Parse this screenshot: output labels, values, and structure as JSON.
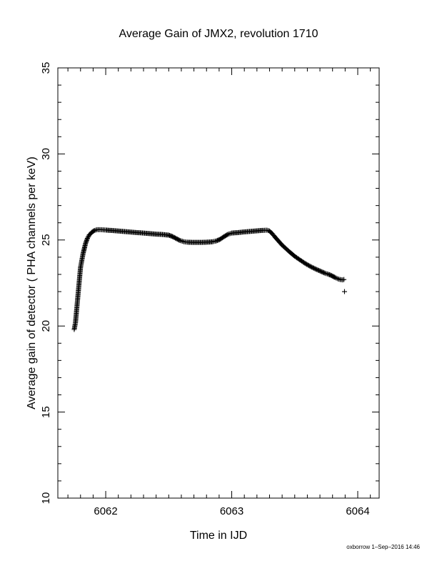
{
  "chart_data": {
    "type": "scatter",
    "title": "Average Gain of JMX2, revolution 1710",
    "xlabel": "Time in IJD",
    "ylabel": "Average gain of detector ( PHA channels per keV)",
    "xlim": [
      6061.62,
      6064.17
    ],
    "ylim": [
      10,
      35
    ],
    "x_ticks": [
      6062,
      6063,
      6064
    ],
    "y_ticks": [
      10,
      15,
      20,
      25,
      30,
      35
    ],
    "x_minor_step": 0.1,
    "y_minor_step": 1,
    "grid": false,
    "marker": "+",
    "series": [
      {
        "points": [
          [
            6061.75,
            19.8
          ],
          [
            6061.76,
            20.2
          ],
          [
            6061.765,
            20.6
          ],
          [
            6061.77,
            21.0
          ],
          [
            6061.775,
            21.4
          ],
          [
            6061.78,
            21.8
          ],
          [
            6061.785,
            22.2
          ],
          [
            6061.79,
            22.6
          ],
          [
            6061.795,
            23.0
          ],
          [
            6061.8,
            23.4
          ],
          [
            6061.81,
            23.8
          ],
          [
            6061.82,
            24.2
          ],
          [
            6061.83,
            24.5
          ],
          [
            6061.84,
            24.8
          ],
          [
            6061.855,
            25.1
          ],
          [
            6061.87,
            25.3
          ],
          [
            6061.89,
            25.45
          ],
          [
            6061.91,
            25.55
          ],
          [
            6061.93,
            25.6
          ],
          [
            6061.96,
            25.6
          ],
          [
            6062.0,
            25.58
          ],
          [
            6062.05,
            25.55
          ],
          [
            6062.1,
            25.52
          ],
          [
            6062.15,
            25.49
          ],
          [
            6062.2,
            25.46
          ],
          [
            6062.25,
            25.43
          ],
          [
            6062.3,
            25.4
          ],
          [
            6062.35,
            25.37
          ],
          [
            6062.4,
            25.34
          ],
          [
            6062.45,
            25.32
          ],
          [
            6062.5,
            25.28
          ],
          [
            6062.53,
            25.2
          ],
          [
            6062.56,
            25.08
          ],
          [
            6062.59,
            24.97
          ],
          [
            6062.62,
            24.9
          ],
          [
            6062.65,
            24.87
          ],
          [
            6062.7,
            24.86
          ],
          [
            6062.75,
            24.86
          ],
          [
            6062.8,
            24.87
          ],
          [
            6062.85,
            24.9
          ],
          [
            6062.88,
            24.95
          ],
          [
            6062.91,
            25.05
          ],
          [
            6062.94,
            25.2
          ],
          [
            6062.97,
            25.33
          ],
          [
            6063.0,
            25.4
          ],
          [
            6063.05,
            25.43
          ],
          [
            6063.1,
            25.47
          ],
          [
            6063.15,
            25.5
          ],
          [
            6063.2,
            25.53
          ],
          [
            6063.25,
            25.56
          ],
          [
            6063.28,
            25.57
          ],
          [
            6063.3,
            25.52
          ],
          [
            6063.32,
            25.38
          ],
          [
            6063.34,
            25.2
          ],
          [
            6063.37,
            24.95
          ],
          [
            6063.4,
            24.7
          ],
          [
            6063.43,
            24.5
          ],
          [
            6063.46,
            24.3
          ],
          [
            6063.5,
            24.05
          ],
          [
            6063.54,
            23.85
          ],
          [
            6063.58,
            23.65
          ],
          [
            6063.62,
            23.48
          ],
          [
            6063.66,
            23.33
          ],
          [
            6063.7,
            23.2
          ],
          [
            6063.74,
            23.07
          ],
          [
            6063.77,
            23.0
          ],
          [
            6063.8,
            22.9
          ],
          [
            6063.82,
            22.82
          ],
          [
            6063.84,
            22.75
          ],
          [
            6063.86,
            22.7
          ],
          [
            6063.88,
            22.68
          ],
          [
            6063.89,
            22.7
          ],
          [
            6063.895,
            22.0
          ]
        ]
      }
    ],
    "footer": "oxborrow  1–Sep–2016 14:46"
  }
}
